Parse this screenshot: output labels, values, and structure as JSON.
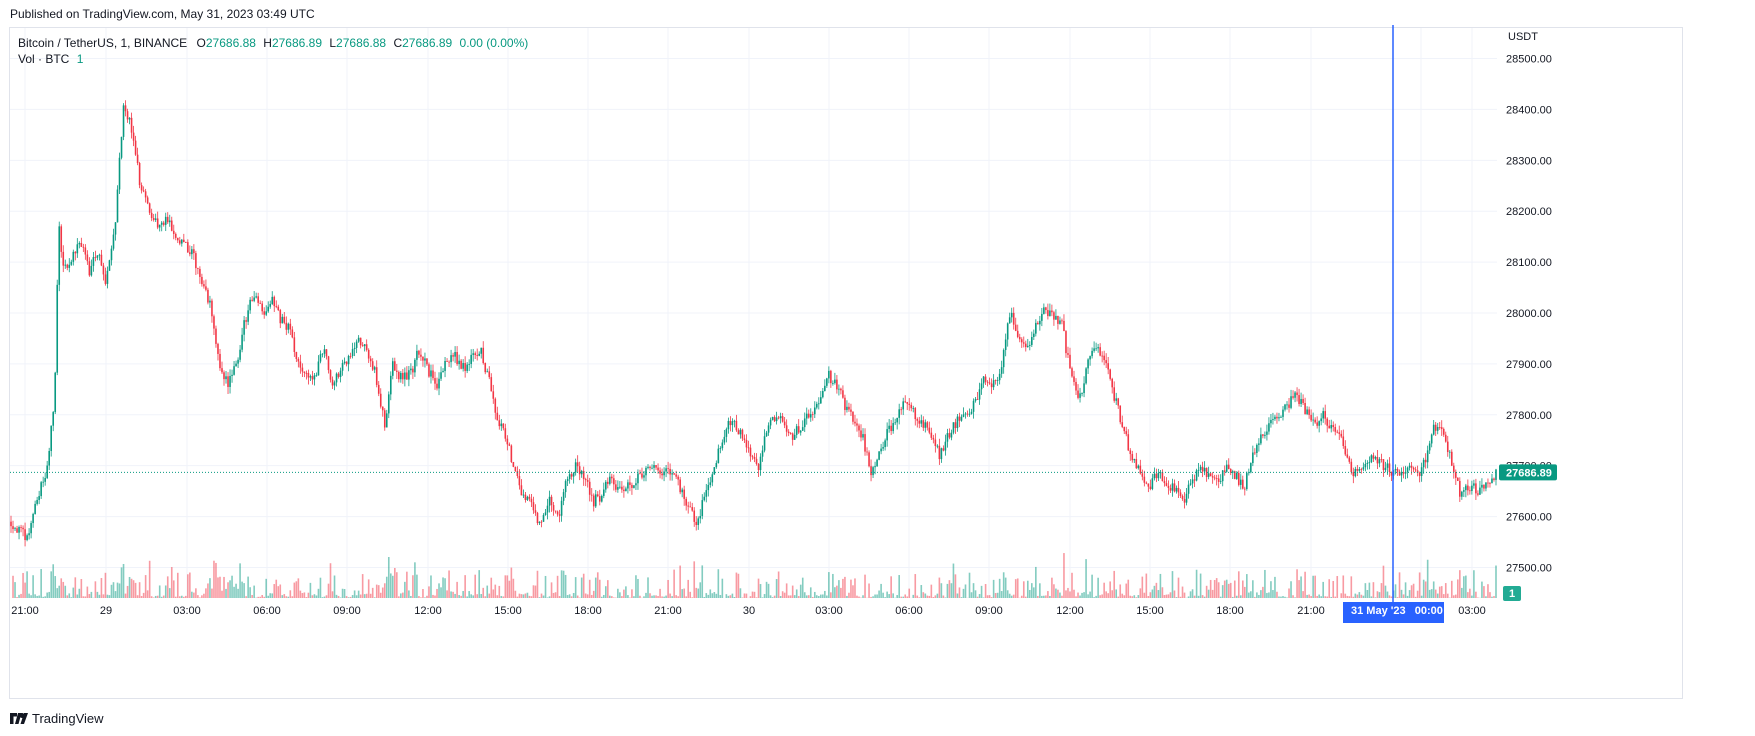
{
  "header": {
    "published": "Published on TradingView.com, May 31, 2023 03:49 UTC"
  },
  "legend": {
    "symbol": "Bitcoin / TetherUS, 1, BINANCE",
    "o_label": "O",
    "o_value": "27686.88",
    "h_label": "H",
    "h_value": "27686.89",
    "l_label": "L",
    "l_value": "27686.88",
    "c_label": "C",
    "c_value": "27686.89",
    "change": "0.00 (0.00%)",
    "volume_label": "Vol · BTC",
    "volume_value": "1"
  },
  "brand": {
    "name": "TradingView"
  },
  "colors": {
    "up": "#089981",
    "down": "#f23645",
    "crosshair": "#2962ff",
    "grid": "#f0f3fa"
  },
  "chart_data": {
    "type": "candlestick",
    "currency": "USDT",
    "y_ticks": [
      "28500.00",
      "28400.00",
      "28300.00",
      "28200.00",
      "28100.00",
      "28000.00",
      "27900.00",
      "27800.00",
      "27700.00",
      "27600.00",
      "27500.00"
    ],
    "ylim": [
      27440,
      28560
    ],
    "x_ticks": [
      "21:00",
      "29",
      "03:00",
      "06:00",
      "09:00",
      "12:00",
      "15:00",
      "18:00",
      "21:00",
      "30",
      "03:00",
      "06:00",
      "09:00",
      "12:00",
      "15:00",
      "18:00",
      "21:00",
      "00:00",
      "03:00"
    ],
    "last_price": "27686.89",
    "last_volume": "1",
    "crosshair_label": "31 May '23   00:00",
    "price_path": [
      [
        0,
        27590
      ],
      [
        1,
        27570
      ],
      [
        2,
        27560
      ],
      [
        3,
        27640
      ],
      [
        4,
        27680
      ],
      [
        5,
        27830
      ],
      [
        5.5,
        28170
      ],
      [
        6,
        28090
      ],
      [
        7,
        28110
      ],
      [
        8,
        28140
      ],
      [
        9,
        28080
      ],
      [
        10,
        28120
      ],
      [
        11,
        28060
      ],
      [
        12,
        28180
      ],
      [
        13,
        28420
      ],
      [
        14,
        28350
      ],
      [
        15,
        28240
      ],
      [
        16,
        28200
      ],
      [
        17,
        28170
      ],
      [
        18,
        28180
      ],
      [
        19,
        28150
      ],
      [
        20,
        28140
      ],
      [
        21,
        28110
      ],
      [
        22,
        28060
      ],
      [
        23,
        28010
      ],
      [
        24,
        27900
      ],
      [
        25,
        27860
      ],
      [
        26,
        27900
      ],
      [
        27,
        27990
      ],
      [
        28,
        28040
      ],
      [
        29,
        28000
      ],
      [
        30,
        28030
      ],
      [
        31,
        27990
      ],
      [
        32,
        27970
      ],
      [
        33,
        27900
      ],
      [
        34,
        27880
      ],
      [
        35,
        27870
      ],
      [
        36,
        27930
      ],
      [
        37,
        27860
      ],
      [
        38,
        27890
      ],
      [
        39,
        27910
      ],
      [
        40,
        27950
      ],
      [
        41,
        27920
      ],
      [
        42,
        27880
      ],
      [
        43,
        27780
      ],
      [
        44,
        27900
      ],
      [
        45,
        27870
      ],
      [
        46,
        27880
      ],
      [
        47,
        27930
      ],
      [
        48,
        27890
      ],
      [
        49,
        27860
      ],
      [
        50,
        27900
      ],
      [
        51,
        27920
      ],
      [
        52,
        27890
      ],
      [
        53,
        27910
      ],
      [
        54,
        27930
      ],
      [
        55,
        27870
      ],
      [
        56,
        27790
      ],
      [
        57,
        27760
      ],
      [
        58,
        27690
      ],
      [
        59,
        27640
      ],
      [
        60,
        27620
      ],
      [
        61,
        27580
      ],
      [
        62,
        27630
      ],
      [
        63,
        27600
      ],
      [
        64,
        27670
      ],
      [
        65,
        27700
      ],
      [
        66,
        27680
      ],
      [
        67,
        27630
      ],
      [
        68,
        27640
      ],
      [
        69,
        27680
      ],
      [
        70,
        27650
      ],
      [
        71,
        27660
      ],
      [
        72,
        27670
      ],
      [
        73,
        27690
      ],
      [
        74,
        27700
      ],
      [
        75,
        27680
      ],
      [
        76,
        27690
      ],
      [
        77,
        27660
      ],
      [
        78,
        27620
      ],
      [
        79,
        27580
      ],
      [
        80,
        27650
      ],
      [
        81,
        27700
      ],
      [
        82,
        27760
      ],
      [
        83,
        27790
      ],
      [
        84,
        27760
      ],
      [
        85,
        27730
      ],
      [
        86,
        27690
      ],
      [
        87,
        27770
      ],
      [
        88,
        27800
      ],
      [
        89,
        27780
      ],
      [
        90,
        27760
      ],
      [
        91,
        27780
      ],
      [
        92,
        27800
      ],
      [
        93,
        27830
      ],
      [
        94,
        27880
      ],
      [
        95,
        27860
      ],
      [
        96,
        27820
      ],
      [
        97,
        27790
      ],
      [
        98,
        27760
      ],
      [
        99,
        27690
      ],
      [
        100,
        27720
      ],
      [
        101,
        27770
      ],
      [
        102,
        27790
      ],
      [
        103,
        27830
      ],
      [
        104,
        27800
      ],
      [
        105,
        27780
      ],
      [
        106,
        27760
      ],
      [
        107,
        27720
      ],
      [
        108,
        27760
      ],
      [
        109,
        27790
      ],
      [
        110,
        27800
      ],
      [
        111,
        27820
      ],
      [
        112,
        27870
      ],
      [
        113,
        27860
      ],
      [
        114,
        27880
      ],
      [
        115,
        28000
      ],
      [
        116,
        27960
      ],
      [
        117,
        27930
      ],
      [
        118,
        27980
      ],
      [
        119,
        28010
      ],
      [
        120,
        27990
      ],
      [
        121,
        27980
      ],
      [
        122,
        27880
      ],
      [
        123,
        27830
      ],
      [
        124,
        27900
      ],
      [
        125,
        27930
      ],
      [
        126,
        27900
      ],
      [
        127,
        27840
      ],
      [
        128,
        27780
      ],
      [
        129,
        27720
      ],
      [
        130,
        27690
      ],
      [
        131,
        27660
      ],
      [
        132,
        27680
      ],
      [
        133,
        27670
      ],
      [
        134,
        27650
      ],
      [
        135,
        27630
      ],
      [
        136,
        27670
      ],
      [
        137,
        27690
      ],
      [
        138,
        27680
      ],
      [
        139,
        27670
      ],
      [
        140,
        27700
      ],
      [
        141,
        27680
      ],
      [
        142,
        27660
      ],
      [
        143,
        27720
      ],
      [
        144,
        27760
      ],
      [
        145,
        27780
      ],
      [
        146,
        27800
      ],
      [
        147,
        27820
      ],
      [
        148,
        27840
      ],
      [
        149,
        27810
      ],
      [
        150,
        27780
      ],
      [
        151,
        27800
      ],
      [
        152,
        27780
      ],
      [
        153,
        27760
      ],
      [
        154,
        27700
      ],
      [
        155,
        27680
      ],
      [
        156,
        27700
      ],
      [
        157,
        27720
      ],
      [
        158,
        27700
      ],
      [
        159,
        27690
      ],
      [
        160,
        27680
      ],
      [
        161,
        27700
      ],
      [
        162,
        27680
      ],
      [
        163,
        27720
      ],
      [
        164,
        27780
      ],
      [
        165,
        27760
      ],
      [
        166,
        27700
      ],
      [
        167,
        27640
      ],
      [
        168,
        27660
      ],
      [
        169,
        27650
      ],
      [
        170,
        27670
      ],
      [
        171,
        27686.89
      ]
    ],
    "path_time_span": [
      0,
      171
    ],
    "volume_scale_max": 1
  }
}
